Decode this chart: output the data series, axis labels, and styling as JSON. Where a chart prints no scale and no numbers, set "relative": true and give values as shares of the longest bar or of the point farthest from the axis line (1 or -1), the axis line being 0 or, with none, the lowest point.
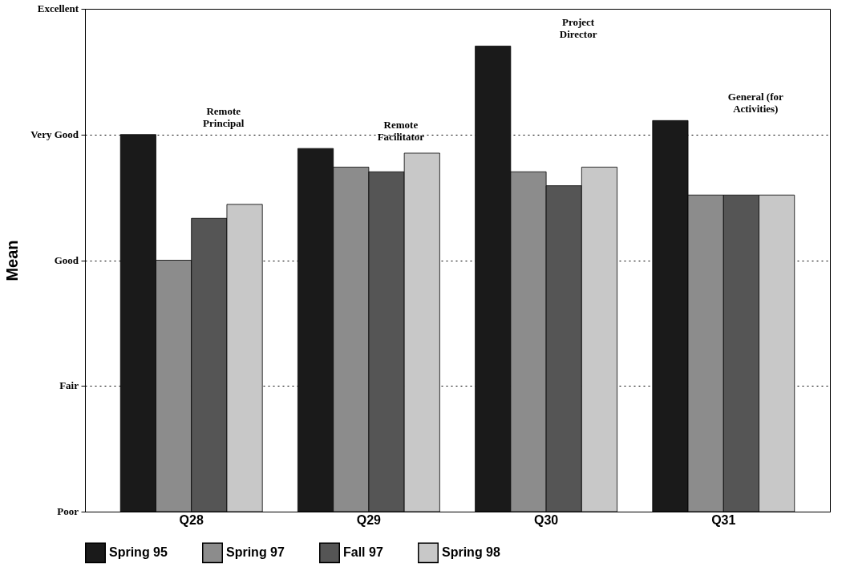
{
  "chart_data": {
    "type": "bar",
    "ylabel": "Mean",
    "relative": true,
    "categories": [
      "Q28",
      "Q29",
      "Q30",
      "Q31"
    ],
    "series": [
      {
        "name": "Spring 95",
        "color": "#1a1a1a",
        "values": [
          0.81,
          0.78,
          1,
          0.84
        ]
      },
      {
        "name": "Spring 97",
        "color": "#8c8c8c",
        "values": [
          0.54,
          0.74,
          0.73,
          0.68
        ]
      },
      {
        "name": "Fall 97",
        "color": "#555555",
        "values": [
          0.63,
          0.73,
          0.7,
          0.68
        ]
      },
      {
        "name": "Spring 98",
        "color": "#c8c8c8",
        "values": [
          0.66,
          0.77,
          0.74,
          0.68
        ]
      }
    ],
    "annotations": [
      "Remote\nPrincipal",
      "Remote\nFacilitator",
      "Project\nDirector",
      "General (for\nActivities)",
      "Poor",
      "Fair",
      "Good",
      "Very Good",
      "Excellent"
    ],
    "grid": "y",
    "legend": "bottom"
  }
}
